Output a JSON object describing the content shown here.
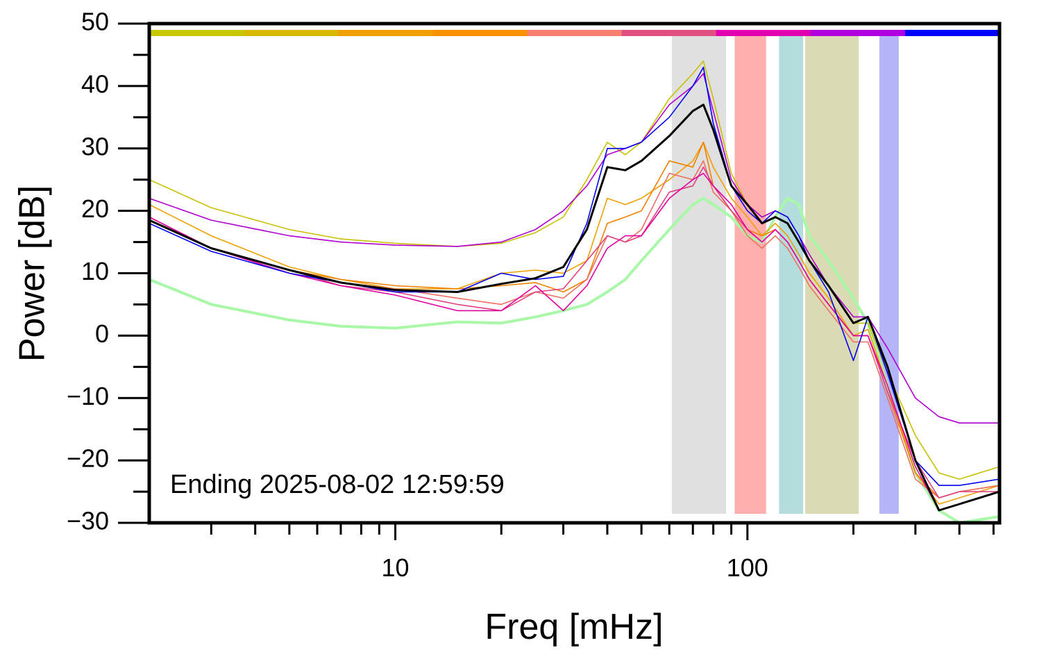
{
  "chart_data": {
    "type": "line",
    "x_label": "Freq [mHz]",
    "y_label": "Power [dB]",
    "annotation": "Ending 2025-08-02 12:59:59",
    "log_x": true,
    "xlim": [
      2,
      520
    ],
    "ylim": [
      -30,
      50
    ],
    "xticks": [
      10,
      100
    ],
    "xminorticks": [
      3,
      4,
      5,
      6,
      7,
      8,
      9,
      20,
      30,
      40,
      50,
      60,
      70,
      80,
      90,
      200,
      300,
      400,
      500
    ],
    "yticks": [
      50,
      40,
      30,
      20,
      10,
      0,
      {
        "value": -10,
        "label": "−10"
      },
      {
        "value": -20,
        "label": "−20"
      },
      {
        "value": -30,
        "label": "−30"
      }
    ],
    "yminorticks": [
      45,
      35,
      25,
      15,
      5,
      -5,
      -15,
      -25
    ],
    "bands": [
      {
        "range": [
          61,
          87
        ],
        "color": "#e0e0e0"
      },
      {
        "range": [
          92,
          113
        ],
        "color": "#ffb0ae"
      },
      {
        "range": [
          123,
          144
        ],
        "color": "#b4dcdc"
      },
      {
        "range": [
          146,
          207
        ],
        "color": "#dadab4"
      },
      {
        "range": [
          237,
          269
        ],
        "color": "#b4b4f8"
      }
    ],
    "color_bar": [
      "#c8c800",
      "#d8b800",
      "#f0a000",
      "#f89000",
      "#f88070",
      "#e05080",
      "#e000b0",
      "#b000e0",
      "#0000ff"
    ],
    "x": [
      2,
      3,
      5,
      7,
      10,
      15,
      20,
      25,
      30,
      35,
      40,
      45,
      50,
      60,
      70,
      75,
      80,
      90,
      100,
      110,
      120,
      130,
      140,
      150,
      170,
      200,
      220,
      250,
      300,
      350,
      400,
      520
    ],
    "series": [
      {
        "color": "#a8f8a8",
        "width": 4,
        "values": [
          9,
          5,
          2.5,
          1.5,
          1.2,
          2.2,
          2,
          3,
          4,
          5,
          7,
          9,
          12,
          17,
          21,
          22,
          21,
          19,
          16,
          15,
          19,
          22,
          21,
          16,
          12,
          6,
          2,
          -8,
          -22,
          -28,
          -30,
          -29
        ]
      },
      {
        "color": "#c8c000",
        "width": 1.6,
        "values": [
          25,
          20.5,
          17,
          15.5,
          14.8,
          14.3,
          14.8,
          16.5,
          19,
          25,
          31,
          29,
          31,
          38,
          42,
          44,
          38,
          26,
          21,
          19,
          20,
          19,
          16,
          13,
          8,
          2,
          2,
          -6,
          -16,
          -22,
          -23,
          -21
        ]
      },
      {
        "color": "#b000d0",
        "width": 1.6,
        "values": [
          22,
          18.5,
          16,
          15,
          14.5,
          14.3,
          15,
          17,
          20,
          24,
          29,
          30,
          31,
          37,
          40,
          42,
          36,
          25,
          21,
          19,
          20,
          19,
          16,
          13,
          8,
          3,
          3,
          -2,
          -10,
          -13,
          -14,
          -14
        ]
      },
      {
        "color": "#f0a000",
        "width": 1.6,
        "values": [
          21,
          16,
          11,
          9,
          7.5,
          7.5,
          10,
          10.5,
          10,
          12,
          22,
          21,
          22,
          25,
          28,
          31,
          27,
          22,
          19,
          16,
          18,
          16,
          13,
          10,
          6,
          0,
          1,
          -8,
          -22,
          -27,
          -26,
          -24
        ]
      },
      {
        "color": "#f08000",
        "width": 1.6,
        "values": [
          19,
          14,
          10.5,
          9,
          8,
          7.5,
          8,
          8.5,
          7,
          9,
          18,
          19,
          20,
          28,
          27,
          31,
          24,
          20,
          17,
          16,
          17,
          15,
          12,
          9,
          5,
          0,
          0,
          -9,
          -22,
          -26,
          -25,
          -24
        ]
      },
      {
        "color": "#f07060",
        "width": 1.6,
        "values": [
          19,
          14,
          10,
          8.5,
          7.5,
          6,
          5,
          7,
          6,
          9,
          16,
          15,
          17,
          26,
          25,
          28,
          23,
          20,
          16,
          14,
          16,
          14,
          11,
          8,
          4,
          -1,
          -1,
          -10,
          -23,
          -26,
          -25,
          -24
        ]
      },
      {
        "color": "#e04080",
        "width": 1.6,
        "values": [
          18.5,
          14,
          10.5,
          8,
          7,
          5,
          4,
          7,
          7.5,
          12,
          16,
          15,
          16,
          23,
          24,
          27,
          24,
          20,
          17,
          15,
          17,
          15,
          12,
          9,
          5,
          0,
          0,
          -9,
          -20,
          -26,
          -25,
          -25
        ]
      },
      {
        "color": "#e000a0",
        "width": 1.6,
        "values": [
          19,
          14,
          10,
          8,
          6.5,
          4,
          4,
          8,
          4,
          8,
          14,
          16,
          16,
          22,
          25,
          26,
          24,
          21,
          17,
          15,
          17,
          15,
          12,
          9,
          5,
          0,
          0,
          -8,
          -21,
          -28,
          -27,
          -25
        ]
      },
      {
        "color": "#0000ee",
        "width": 1.6,
        "values": [
          18,
          13.5,
          10,
          8.5,
          7,
          7,
          10,
          9,
          9.5,
          18,
          30,
          30,
          31,
          35,
          40,
          43,
          34,
          24,
          20,
          18,
          20,
          19,
          16,
          12,
          7,
          -4,
          3,
          -6,
          -20,
          -24,
          -24,
          -23
        ]
      },
      {
        "color": "#000000",
        "width": 3,
        "values": [
          18.5,
          14,
          10.5,
          8.5,
          7.3,
          7,
          8.3,
          9.2,
          11,
          17,
          27,
          26.5,
          28,
          32,
          36,
          37,
          33,
          24,
          21,
          18,
          19,
          18,
          15,
          12,
          8,
          2,
          3,
          -5,
          -20,
          -28,
          -27,
          -25
        ]
      }
    ]
  }
}
